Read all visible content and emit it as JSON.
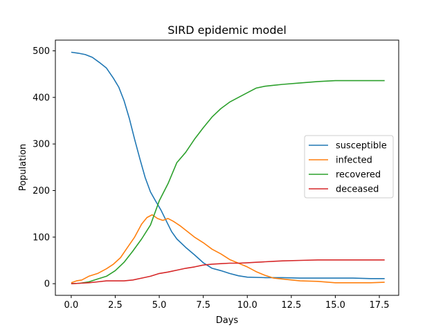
{
  "chart_data": {
    "type": "line",
    "title": "SIRD epidemic model",
    "xlabel": "Days",
    "ylabel": "Population",
    "xlim": [
      -0.9,
      18.6
    ],
    "ylim": [
      -25,
      523
    ],
    "xticks": [
      0.0,
      2.5,
      5.0,
      7.5,
      10.0,
      12.5,
      15.0,
      17.5
    ],
    "xtick_labels": [
      "0.0",
      "2.5",
      "5.0",
      "7.5",
      "10.0",
      "12.5",
      "15.0",
      "17.5"
    ],
    "yticks": [
      0,
      100,
      200,
      300,
      400,
      500
    ],
    "ytick_labels": [
      "0",
      "100",
      "200",
      "300",
      "400",
      "500"
    ],
    "grid": false,
    "legend_position": "center-right",
    "series": [
      {
        "name": "susceptible",
        "color": "#1f77b4",
        "points": [
          [
            0,
            497
          ],
          [
            0.4,
            495
          ],
          [
            0.8,
            492
          ],
          [
            1.2,
            486
          ],
          [
            1.6,
            475
          ],
          [
            2.0,
            463
          ],
          [
            2.4,
            441
          ],
          [
            2.7,
            422
          ],
          [
            3.0,
            393
          ],
          [
            3.3,
            355
          ],
          [
            3.6,
            310
          ],
          [
            3.9,
            268
          ],
          [
            4.2,
            228
          ],
          [
            4.5,
            197
          ],
          [
            4.8,
            177
          ],
          [
            5.1,
            158
          ],
          [
            5.4,
            135
          ],
          [
            5.7,
            112
          ],
          [
            6.0,
            96
          ],
          [
            6.5,
            78
          ],
          [
            7.0,
            62
          ],
          [
            7.5,
            45
          ],
          [
            8.0,
            33
          ],
          [
            8.5,
            28
          ],
          [
            9.0,
            22
          ],
          [
            9.5,
            17
          ],
          [
            10.0,
            14
          ],
          [
            11.0,
            13
          ],
          [
            12.0,
            13
          ],
          [
            13.0,
            12
          ],
          [
            14.0,
            12
          ],
          [
            15.0,
            12
          ],
          [
            16.0,
            12
          ],
          [
            17.0,
            11
          ],
          [
            17.8,
            11
          ]
        ]
      },
      {
        "name": "infected",
        "color": "#ff7f0e",
        "points": [
          [
            0,
            2
          ],
          [
            0.3,
            6
          ],
          [
            0.6,
            8
          ],
          [
            1.0,
            16
          ],
          [
            1.5,
            22
          ],
          [
            2.0,
            32
          ],
          [
            2.4,
            42
          ],
          [
            2.8,
            56
          ],
          [
            3.2,
            78
          ],
          [
            3.6,
            100
          ],
          [
            4.0,
            128
          ],
          [
            4.3,
            142
          ],
          [
            4.6,
            148
          ],
          [
            4.9,
            140
          ],
          [
            5.2,
            136
          ],
          [
            5.5,
            140
          ],
          [
            5.8,
            134
          ],
          [
            6.2,
            124
          ],
          [
            6.6,
            112
          ],
          [
            7.0,
            100
          ],
          [
            7.5,
            88
          ],
          [
            8.0,
            74
          ],
          [
            8.5,
            64
          ],
          [
            9.0,
            52
          ],
          [
            9.5,
            44
          ],
          [
            10.0,
            36
          ],
          [
            10.5,
            26
          ],
          [
            11.0,
            18
          ],
          [
            11.5,
            12
          ],
          [
            12.0,
            10
          ],
          [
            13.0,
            6
          ],
          [
            14.0,
            5
          ],
          [
            15.0,
            2
          ],
          [
            16.0,
            2
          ],
          [
            17.0,
            2
          ],
          [
            17.8,
            3
          ]
        ]
      },
      {
        "name": "recovered",
        "color": "#2ca02c",
        "points": [
          [
            0,
            0
          ],
          [
            0.5,
            1
          ],
          [
            1.0,
            4
          ],
          [
            1.5,
            10
          ],
          [
            2.0,
            16
          ],
          [
            2.5,
            28
          ],
          [
            3.0,
            46
          ],
          [
            3.5,
            70
          ],
          [
            4.0,
            96
          ],
          [
            4.5,
            126
          ],
          [
            5.0,
            178
          ],
          [
            5.5,
            215
          ],
          [
            6.0,
            260
          ],
          [
            6.5,
            282
          ],
          [
            7.0,
            310
          ],
          [
            7.5,
            335
          ],
          [
            8.0,
            358
          ],
          [
            8.5,
            376
          ],
          [
            9.0,
            390
          ],
          [
            9.5,
            400
          ],
          [
            10.0,
            410
          ],
          [
            10.5,
            420
          ],
          [
            11.0,
            424
          ],
          [
            11.5,
            426
          ],
          [
            12.0,
            428
          ],
          [
            13.0,
            431
          ],
          [
            14.0,
            434
          ],
          [
            15.0,
            436
          ],
          [
            16.0,
            436
          ],
          [
            17.0,
            436
          ],
          [
            17.8,
            436
          ]
        ]
      },
      {
        "name": "deceased",
        "color": "#d62728",
        "points": [
          [
            0,
            0
          ],
          [
            0.5,
            1
          ],
          [
            1.0,
            2
          ],
          [
            1.5,
            4
          ],
          [
            2.0,
            6
          ],
          [
            2.5,
            6
          ],
          [
            3.0,
            6
          ],
          [
            3.5,
            8
          ],
          [
            4.0,
            12
          ],
          [
            4.5,
            16
          ],
          [
            5.0,
            22
          ],
          [
            5.5,
            25
          ],
          [
            6.0,
            29
          ],
          [
            6.5,
            33
          ],
          [
            7.0,
            36
          ],
          [
            7.5,
            40
          ],
          [
            8.0,
            42
          ],
          [
            8.5,
            43
          ],
          [
            9.0,
            44
          ],
          [
            9.5,
            44
          ],
          [
            10.0,
            45
          ],
          [
            10.5,
            46
          ],
          [
            11.0,
            47
          ],
          [
            11.5,
            48
          ],
          [
            12.0,
            49
          ],
          [
            13.0,
            50
          ],
          [
            14.0,
            51
          ],
          [
            15.0,
            51
          ],
          [
            16.0,
            51
          ],
          [
            17.0,
            51
          ],
          [
            17.8,
            51
          ]
        ]
      }
    ]
  }
}
